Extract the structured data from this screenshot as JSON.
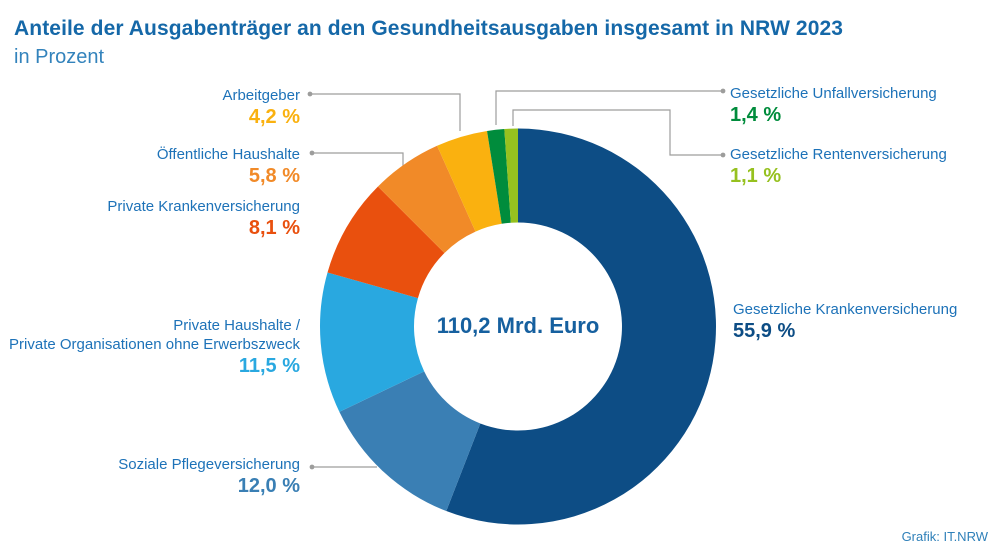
{
  "chart_data": {
    "type": "pie",
    "variant": "donut",
    "title": "Anteile der Ausgabenträger an den Gesundheitsausgaben insgesamt in NRW 2023",
    "subtitle": "in Prozent",
    "center_label": "110,2 Mrd. Euro",
    "unit": "%",
    "start_angle_deg": 0,
    "direction": "clockwise",
    "legend_position": "callout-labels",
    "segments": [
      {
        "label": "Gesetzliche Krankenversicherung",
        "value": 55.9,
        "value_label": "55,9 %",
        "color": "#0D4D85"
      },
      {
        "label": "Soziale Pflegeversicherung",
        "value": 12.0,
        "value_label": "12,0 %",
        "color": "#3A7FB4"
      },
      {
        "label": "Private Haushalte /\nPrivate Organisationen ohne Erwerbszweck",
        "value": 11.5,
        "value_label": "11,5 %",
        "color": "#29A8E0"
      },
      {
        "label": "Private Krankenversicherung",
        "value": 8.1,
        "value_label": "8,1 %",
        "color": "#E9500E"
      },
      {
        "label": "Öffentliche Haushalte",
        "value": 5.8,
        "value_label": "5,8 %",
        "color": "#F18A28"
      },
      {
        "label": "Arbeitgeber",
        "value": 4.2,
        "value_label": "4,2 %",
        "color": "#FAB10F"
      },
      {
        "label": "Gesetzliche Unfallversicherung",
        "value": 1.4,
        "value_label": "1,4 %",
        "color": "#008C3C"
      },
      {
        "label": "Gesetzliche Rentenversicherung",
        "value": 1.1,
        "value_label": "1,1 %",
        "color": "#96C11F"
      }
    ]
  },
  "footer": {
    "credit": "Grafik: IT.NRW"
  },
  "colors": {
    "title_text": "#1568A8",
    "label_text": "#1D72B8",
    "center_text": "#16609F",
    "leader_line": "#9D9D9C",
    "background": "#FFFFFF"
  }
}
